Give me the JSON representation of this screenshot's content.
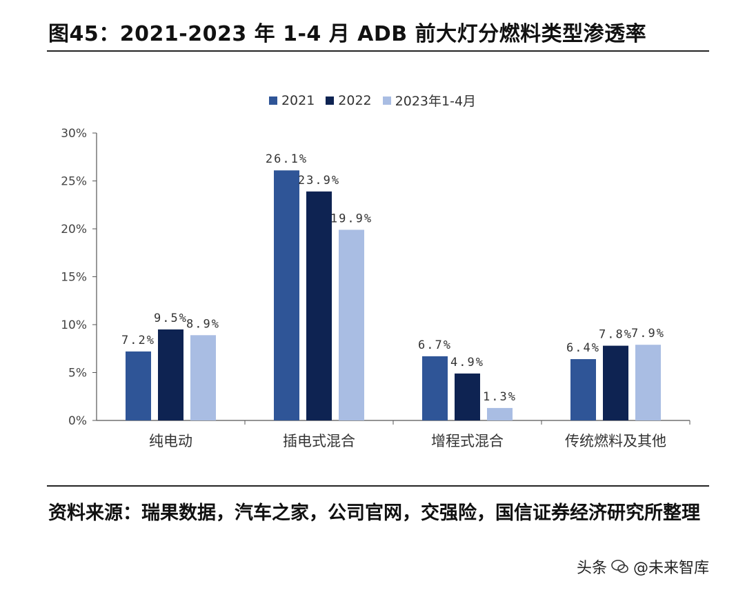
{
  "figure_title": "图45：2021-2023 年 1-4 月 ADB 前大灯分燃料类型渗透率",
  "source_note": "资料来源：瑞果数据，汽车之家，公司官网，交强险，国信证券经济研究所整理",
  "watermark": {
    "platform": "头条",
    "account": "@未来智库",
    "icon": "wechat-icon"
  },
  "colors": {
    "s2021": "#2f5597",
    "s2022": "#0e2352",
    "s2023": "#a9bde3",
    "axis": "#555555"
  },
  "chart_data": {
    "type": "bar",
    "categories": [
      "纯电动",
      "插电式混合",
      "增程式混合",
      "传统燃料及其他"
    ],
    "series": [
      {
        "name": "2021",
        "values": [
          7.2,
          26.1,
          6.7,
          6.4
        ],
        "labels": [
          "7.2%",
          "26.1%",
          "6.7%",
          "6.4%"
        ]
      },
      {
        "name": "2022",
        "values": [
          9.5,
          23.9,
          4.9,
          7.8
        ],
        "labels": [
          "9.5%",
          "23.9%",
          "4.9%",
          "7.8%"
        ]
      },
      {
        "name": "2023年1-4月",
        "values": [
          8.9,
          19.9,
          1.3,
          7.9
        ],
        "labels": [
          "8.9%",
          "19.9%",
          "1.3%",
          "7.9%"
        ]
      }
    ],
    "yticks": [
      "0%",
      "5%",
      "10%",
      "15%",
      "20%",
      "25%",
      "30%"
    ],
    "ylim": [
      0,
      30
    ],
    "legend_position": "top-center",
    "grid": false
  }
}
